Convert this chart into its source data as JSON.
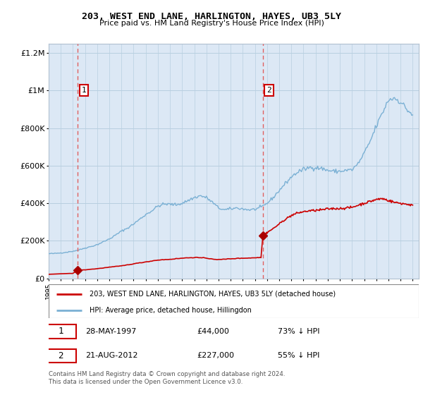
{
  "title": "203, WEST END LANE, HARLINGTON, HAYES, UB3 5LY",
  "subtitle": "Price paid vs. HM Land Registry's House Price Index (HPI)",
  "legend_line1": "203, WEST END LANE, HARLINGTON, HAYES, UB3 5LY (detached house)",
  "legend_line2": "HPI: Average price, detached house, Hillingdon",
  "footnote": "Contains HM Land Registry data © Crown copyright and database right 2024.\nThis data is licensed under the Open Government Licence v3.0.",
  "transaction1_date": "28-MAY-1997",
  "transaction1_price": "£44,000",
  "transaction1_hpi": "73% ↓ HPI",
  "transaction1_year": 1997.4,
  "transaction1_value": 44000,
  "transaction2_date": "21-AUG-2012",
  "transaction2_price": "£227,000",
  "transaction2_hpi": "55% ↓ HPI",
  "transaction2_year": 2012.65,
  "transaction2_value": 227000,
  "ylim_max": 1250000,
  "ylim_min": 0,
  "xlim_min": 1995.0,
  "xlim_max": 2025.5,
  "plot_bg": "#dce8f5",
  "red_line_color": "#cc0000",
  "blue_line_color": "#7ab0d4",
  "dashed_color": "#e06060",
  "marker_color": "#aa0000",
  "box_edge_color": "#cc0000",
  "grid_color": "#b8cfe0",
  "yticks": [
    0,
    200000,
    400000,
    600000,
    800000,
    1000000,
    1200000
  ],
  "ytick_labels": [
    "£0",
    "£200K",
    "£400K",
    "£600K",
    "£800K",
    "£1M",
    "£1.2M"
  ],
  "xticks": [
    1995,
    1996,
    1997,
    1998,
    1999,
    2000,
    2001,
    2002,
    2003,
    2004,
    2005,
    2006,
    2007,
    2008,
    2009,
    2010,
    2011,
    2012,
    2013,
    2014,
    2015,
    2016,
    2017,
    2018,
    2019,
    2020,
    2021,
    2022,
    2023,
    2024,
    2025
  ]
}
